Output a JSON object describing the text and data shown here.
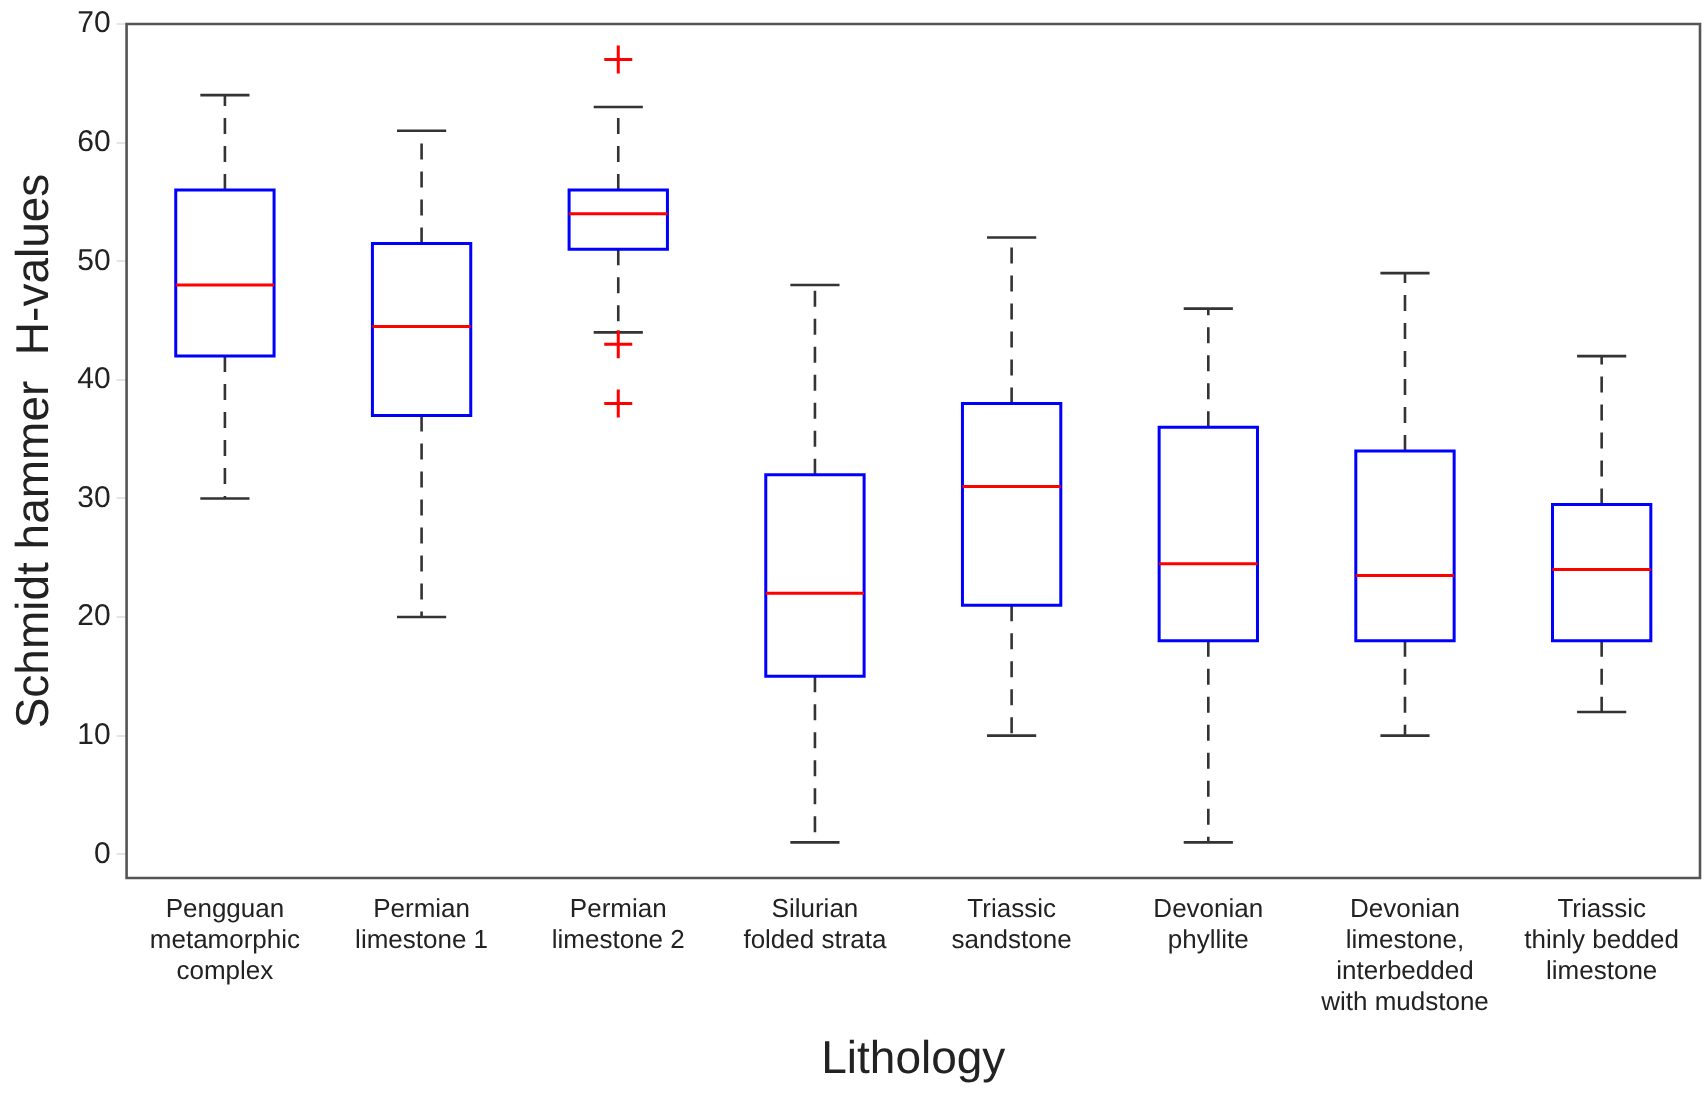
{
  "chart_data": {
    "type": "box",
    "xlabel": "Lithology",
    "ylabel": "Schmidt hammer  H-values",
    "categories": [
      "Pengguan metamorphic complex",
      "Permian limestone 1",
      "Permian limestone 2",
      "Silurian folded strata",
      "Triassic sandstone",
      "Devonian phyllite",
      "Devonian limestone, interbedded with mudstone",
      "Triassic thinly bedded limestone"
    ],
    "series": [
      {
        "color": "#0000ff",
        "boxes": [
          {
            "low": 30,
            "q1": 42,
            "median": 48,
            "q3": 56,
            "high": 64
          },
          {
            "low": 20,
            "q1": 37,
            "median": 44.5,
            "q3": 51.5,
            "high": 61
          },
          {
            "low": 44,
            "q1": 51,
            "median": 54,
            "q3": 56,
            "high": 63,
            "outliers": [
              67,
              43,
              38
            ]
          },
          {
            "low": 1,
            "q1": 15,
            "median": 22,
            "q3": 32,
            "high": 48
          },
          {
            "low": 10,
            "q1": 21,
            "median": 31,
            "q3": 38,
            "high": 52
          },
          {
            "low": 1,
            "q1": 18,
            "median": 24.5,
            "q3": 36,
            "high": 46
          },
          {
            "low": 10,
            "q1": 18,
            "median": 23.5,
            "q3": 34,
            "high": 49
          },
          {
            "low": 12,
            "q1": 18,
            "median": 24,
            "q3": 29.5,
            "high": 42
          }
        ]
      }
    ],
    "ylim": [
      -2,
      70
    ],
    "yticks": [
      0,
      10,
      20,
      30,
      40,
      50,
      60,
      70
    ],
    "grid": false,
    "legend": false,
    "marker": "cross"
  }
}
